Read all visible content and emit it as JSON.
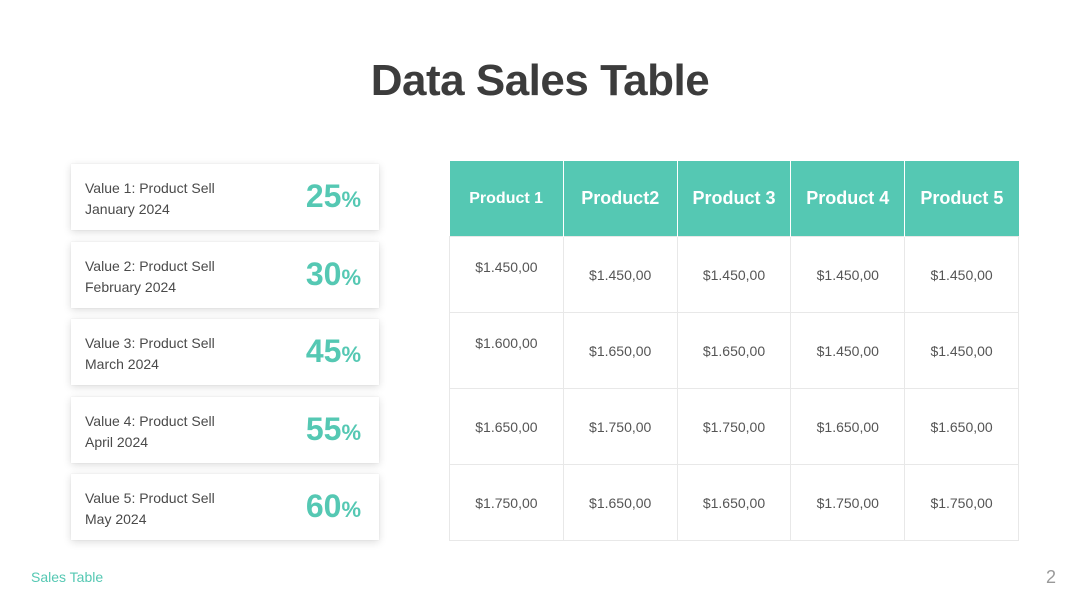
{
  "title": "Data Sales Table",
  "accent_color": "#55c8b3",
  "cards": [
    {
      "line1": "Value 1: Product Sell",
      "line2": "January 2024",
      "value": "25",
      "unit": "%"
    },
    {
      "line1": "Value 2: Product Sell",
      "line2": "February 2024",
      "value": "30",
      "unit": "%"
    },
    {
      "line1": "Value 3: Product Sell",
      "line2": "March 2024",
      "value": "45",
      "unit": "%"
    },
    {
      "line1": "Value 4: Product Sell",
      "line2": "April 2024",
      "value": "55",
      "unit": "%"
    },
    {
      "line1": "Value 5: Product Sell",
      "line2": "May 2024",
      "value": "60",
      "unit": "%"
    }
  ],
  "table": {
    "headers": [
      "Product 1",
      "Product2",
      "Product 3",
      "Product 4",
      "Product 5"
    ],
    "rows": [
      [
        "$1.450,00",
        "$1.450,00",
        "$1.450,00",
        "$1.450,00",
        "$1.450,00"
      ],
      [
        "$1.600,00",
        "$1.650,00",
        "$1.650,00",
        "$1.450,00",
        "$1.450,00"
      ],
      [
        "$1.650,00",
        "$1.750,00",
        "$1.750,00",
        "$1.650,00",
        "$1.650,00"
      ],
      [
        "$1.750,00",
        "$1.650,00",
        "$1.650,00",
        "$1.750,00",
        "$1.750,00"
      ]
    ]
  },
  "footer": {
    "label": "Sales Table",
    "page_number": "2"
  }
}
